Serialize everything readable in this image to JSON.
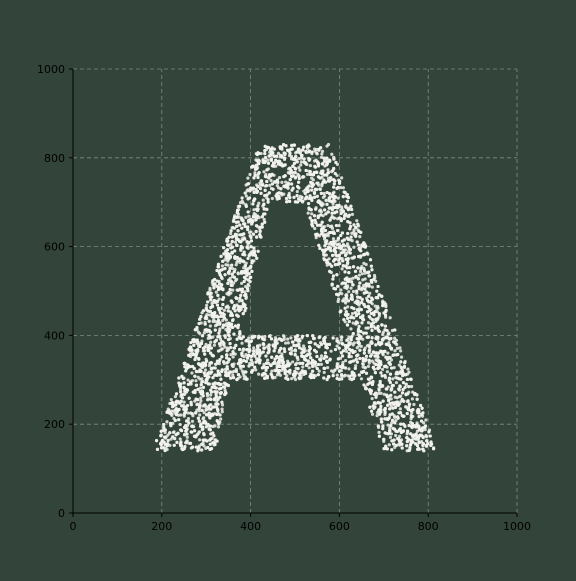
{
  "colors": {
    "background": "#33443a",
    "point": "#f2f2ee",
    "grid": "#8a9a8e",
    "axis": "#000000"
  },
  "chart_data": {
    "type": "scatter",
    "title": "",
    "xlabel": "",
    "ylabel": "",
    "xlim": [
      0,
      1000
    ],
    "ylim": [
      0,
      1000
    ],
    "xticks": [
      0,
      200,
      400,
      600,
      800,
      1000
    ],
    "yticks": [
      0,
      200,
      400,
      600,
      800,
      1000
    ],
    "xtick_labels": [
      "0",
      "200",
      "400",
      "600",
      "800",
      "1000"
    ],
    "ytick_labels": [
      "0",
      "200",
      "400",
      "600",
      "800",
      "1000"
    ],
    "grid": true,
    "grid_style": "dashed",
    "legend": "none",
    "series": [
      {
        "shape": "letter A",
        "approx_point_count": 5000,
        "regions": [
          {
            "part": "left stroke",
            "polygon": [
              [
                180,
                140
              ],
              [
                320,
                140
              ],
              [
                470,
                830
              ],
              [
                420,
                830
              ]
            ]
          },
          {
            "part": "right stroke",
            "polygon": [
              [
                700,
                140
              ],
              [
                820,
                140
              ],
              [
                580,
                830
              ],
              [
                480,
                830
              ]
            ]
          },
          {
            "part": "crossbar",
            "polygon": [
              [
                270,
                300
              ],
              [
                720,
                300
              ],
              [
                680,
                400
              ],
              [
                300,
                400
              ]
            ]
          },
          {
            "part": "apex",
            "polygon": [
              [
                420,
                830
              ],
              [
                580,
                830
              ],
              [
                560,
                700
              ],
              [
                440,
                700
              ]
            ]
          }
        ]
      }
    ]
  }
}
